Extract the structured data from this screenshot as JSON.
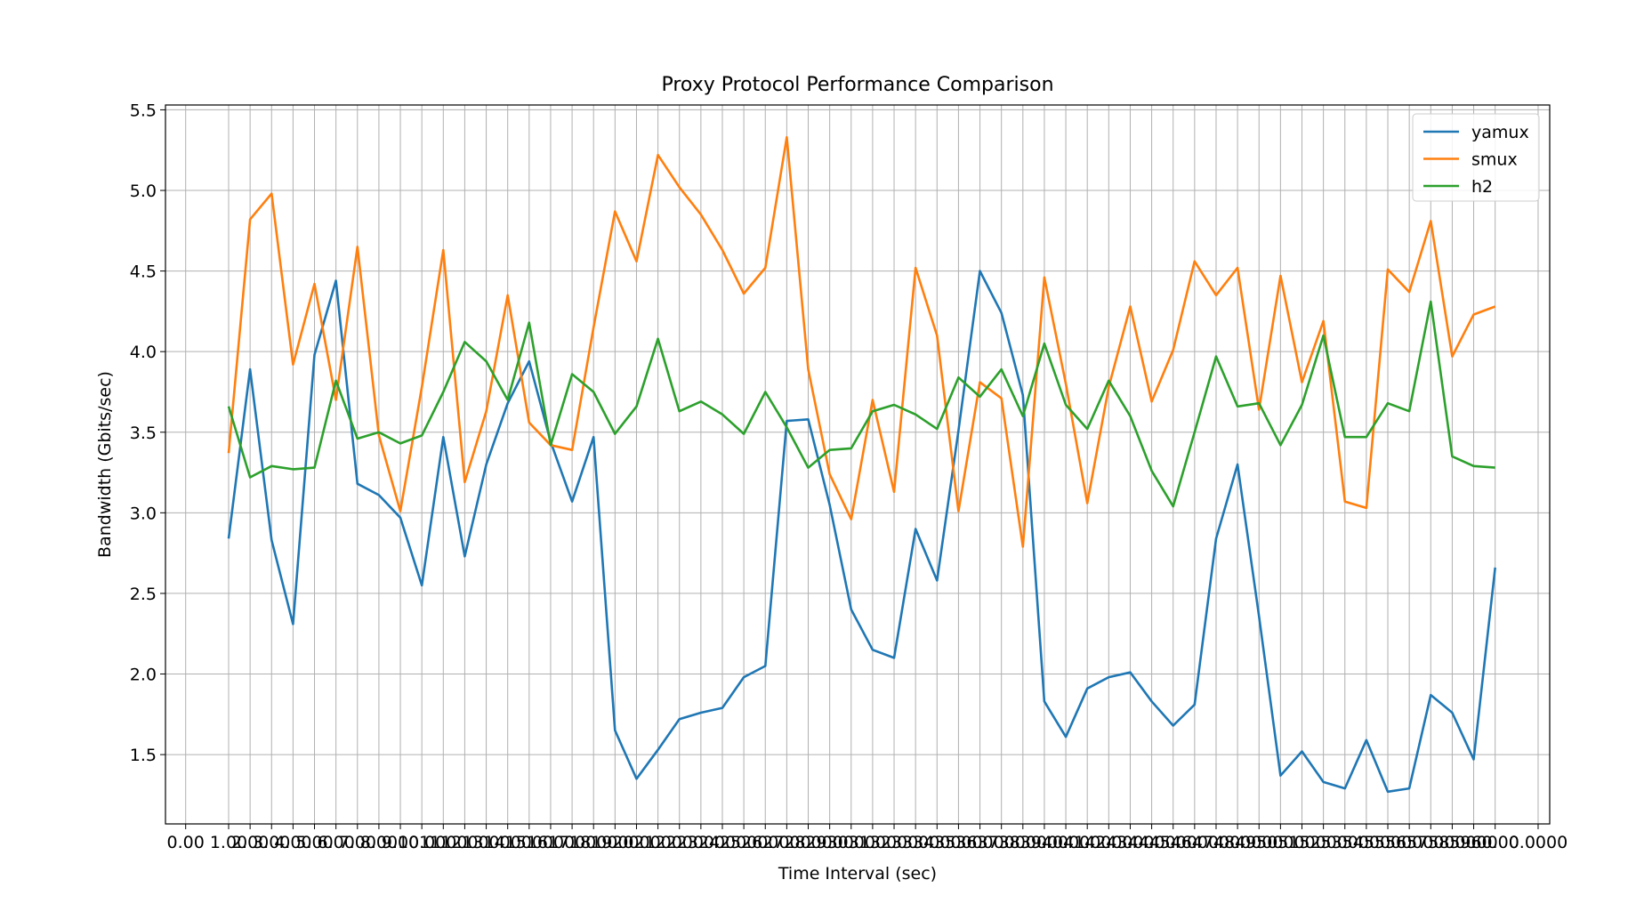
{
  "chart_data": {
    "type": "line",
    "title": "Proxy Protocol Performance Comparison",
    "xlabel": "Time Interval (sec)",
    "ylabel": "Bandwidth (Gbits/sec)",
    "ylim": [
      1.07,
      5.53
    ],
    "yticks": [
      "1.5",
      "2.0",
      "2.5",
      "3.0",
      "3.5",
      "4.0",
      "4.5",
      "5.0",
      "5.5"
    ],
    "grid": true,
    "legend_position": "upper right",
    "x_first_tick_label": "0.00",
    "x_last_tick_label": "0.0000",
    "x": [
      "1.00",
      "2.00",
      "3.00",
      "4.00",
      "5.00",
      "6.00",
      "7.00",
      "8.00",
      "9.00",
      "10.00",
      "11.00",
      "12.00",
      "13.00",
      "14.00",
      "15.00",
      "16.00",
      "17.00",
      "18.00",
      "19.00",
      "20.00",
      "21.00",
      "22.00",
      "23.00",
      "24.00",
      "25.00",
      "26.00",
      "27.00",
      "28.00",
      "29.00",
      "30.00",
      "31.00",
      "32.00",
      "33.00",
      "34.00",
      "35.00",
      "36.00",
      "37.00",
      "38.00",
      "39.00",
      "40.00",
      "41.00",
      "42.00",
      "43.00",
      "44.00",
      "45.00",
      "46.00",
      "47.00",
      "48.00",
      "49.00",
      "50.00",
      "51.00",
      "52.00",
      "53.00",
      "54.00",
      "55.00",
      "56.00",
      "57.00",
      "58.00",
      "59.00",
      "60.00"
    ],
    "series": [
      {
        "name": "yamux",
        "color": "#1f77b4",
        "values": [
          2.84,
          3.89,
          2.83,
          2.31,
          3.98,
          4.44,
          3.18,
          3.11,
          2.97,
          2.55,
          3.47,
          2.73,
          3.3,
          3.68,
          3.94,
          3.44,
          3.07,
          3.47,
          1.65,
          1.35,
          1.53,
          1.72,
          1.76,
          1.79,
          1.98,
          2.05,
          3.57,
          3.58,
          3.05,
          2.4,
          2.15,
          2.1,
          2.9,
          2.58,
          3.51,
          4.5,
          4.24,
          3.73,
          1.83,
          1.61,
          1.91,
          1.98,
          2.01,
          1.83,
          1.68,
          1.81,
          2.84,
          3.3,
          2.36,
          1.37,
          1.52,
          1.33,
          1.29,
          1.59,
          1.27,
          1.29,
          1.87,
          1.76,
          1.47,
          2.66
        ]
      },
      {
        "name": "smux",
        "color": "#ff7f0e",
        "values": [
          3.37,
          4.82,
          4.98,
          3.92,
          4.42,
          3.7,
          4.65,
          3.48,
          3.01,
          3.78,
          4.63,
          3.19,
          3.63,
          4.35,
          3.56,
          3.42,
          3.39,
          4.15,
          4.87,
          4.56,
          5.22,
          5.02,
          4.85,
          4.63,
          4.36,
          4.52,
          5.33,
          3.89,
          3.24,
          2.96,
          3.7,
          3.13,
          4.52,
          4.1,
          3.01,
          3.81,
          3.71,
          2.79,
          4.46,
          3.8,
          3.06,
          3.78,
          4.28,
          3.69,
          4.01,
          4.56,
          4.35,
          4.52,
          3.64,
          4.47,
          3.81,
          4.19,
          3.07,
          3.03,
          4.51,
          4.37,
          4.81,
          3.97,
          4.23,
          4.28
        ]
      },
      {
        "name": "h2",
        "color": "#2ca02c",
        "values": [
          3.66,
          3.22,
          3.29,
          3.27,
          3.28,
          3.82,
          3.46,
          3.5,
          3.43,
          3.48,
          3.75,
          4.06,
          3.94,
          3.7,
          4.18,
          3.42,
          3.86,
          3.75,
          3.49,
          3.66,
          4.08,
          3.63,
          3.69,
          3.61,
          3.49,
          3.75,
          3.53,
          3.28,
          3.39,
          3.4,
          3.63,
          3.67,
          3.61,
          3.52,
          3.84,
          3.72,
          3.89,
          3.6,
          4.05,
          3.67,
          3.52,
          3.82,
          3.6,
          3.26,
          3.04,
          3.5,
          3.97,
          3.66,
          3.68,
          3.42,
          3.67,
          4.1,
          3.47,
          3.47,
          3.68,
          3.63,
          4.31,
          3.35,
          3.29,
          3.28
        ]
      }
    ]
  }
}
